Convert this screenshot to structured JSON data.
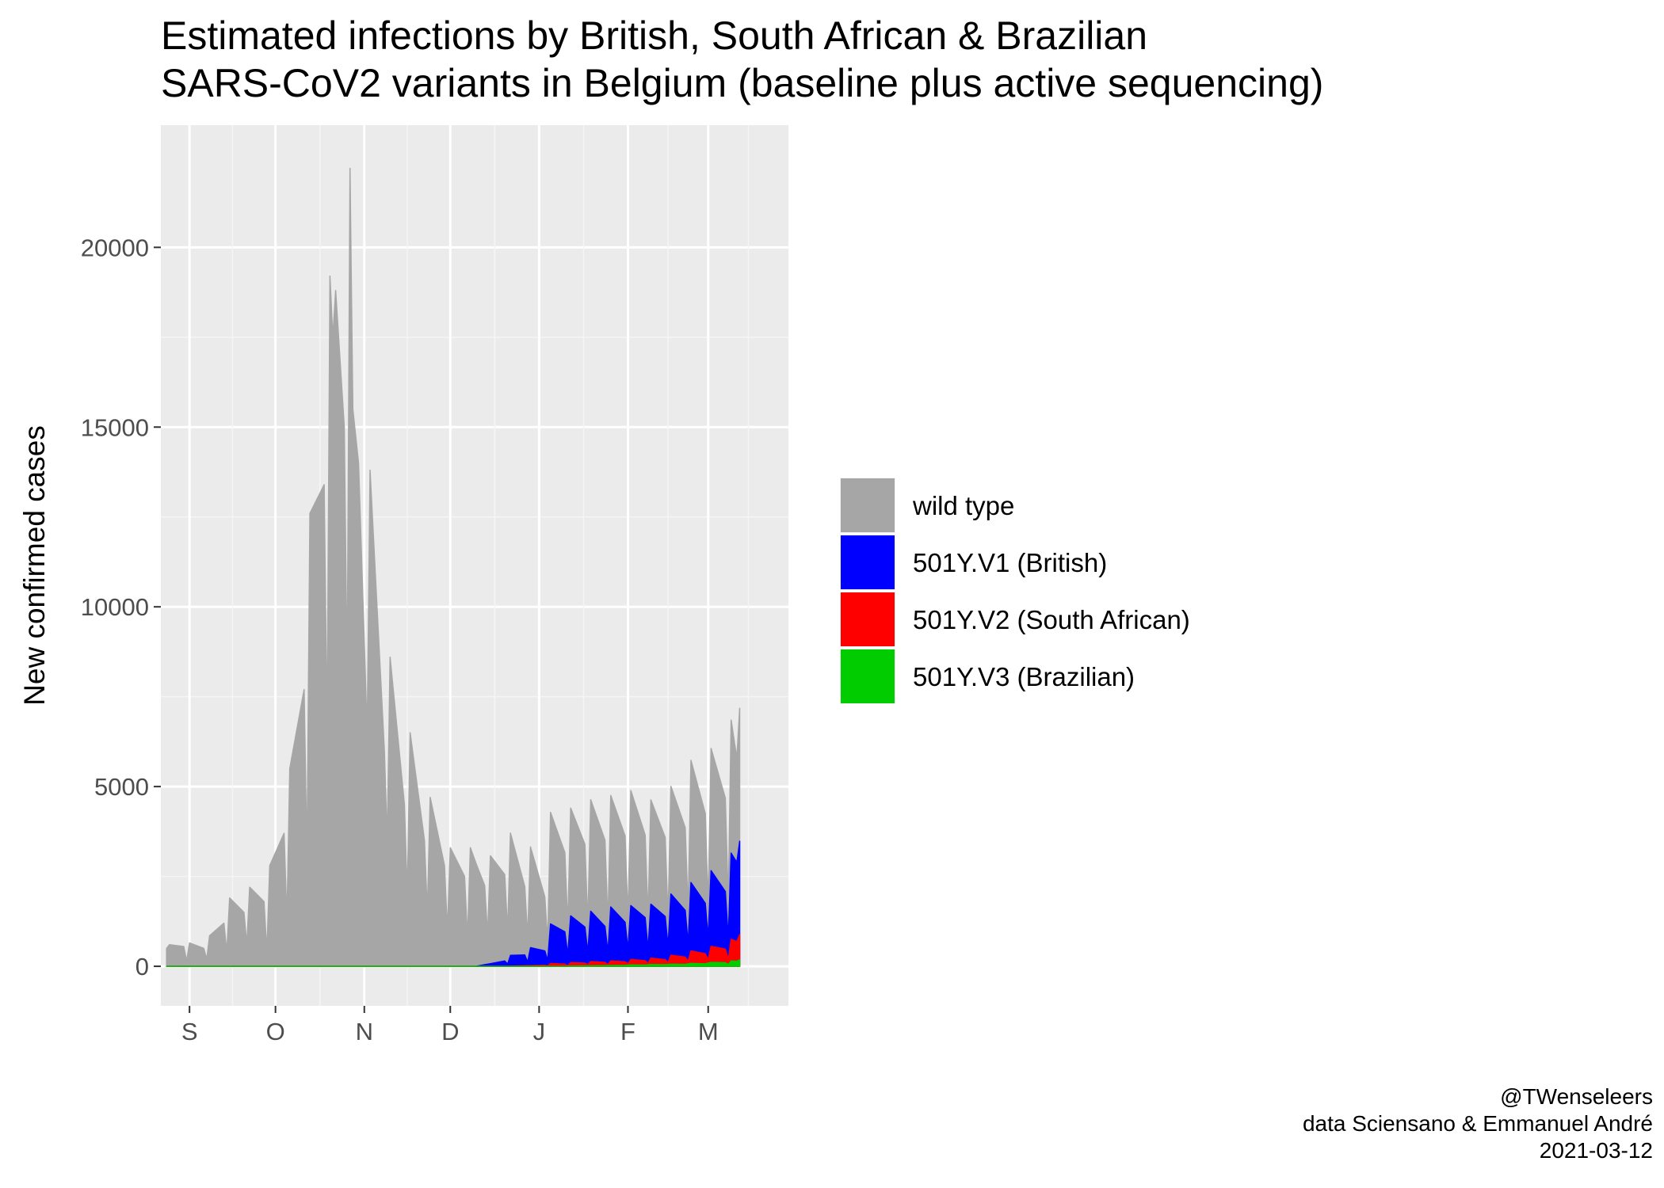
{
  "chart_data": {
    "type": "area",
    "stacked": true,
    "title": "Estimated infections by British, South African & Brazilian SARS-CoV2 variants in Belgium (baseline plus active sequencing)",
    "title_lines": [
      "Estimated infections by British, South African & Brazilian",
      "SARS-CoV2 variants in Belgium (baseline plus active sequencing)"
    ],
    "xlabel": "",
    "ylabel": "New confirmed cases",
    "x_range": [
      "2020-08-22",
      "2021-03-29"
    ],
    "ylim": [
      -1100,
      23400
    ],
    "yticks": [
      0,
      5000,
      10000,
      15000,
      20000
    ],
    "xticks": [
      {
        "label": "S",
        "date": "2020-09-01"
      },
      {
        "label": "O",
        "date": "2020-10-01"
      },
      {
        "label": "N",
        "date": "2020-11-01"
      },
      {
        "label": "D",
        "date": "2020-12-01"
      },
      {
        "label": "J",
        "date": "2021-01-01"
      },
      {
        "label": "F",
        "date": "2021-02-01"
      },
      {
        "label": "M",
        "date": "2021-03-01"
      }
    ],
    "grid": true,
    "legend_position": "right",
    "series": [
      {
        "name": "wild type",
        "color": "#a6a6a6",
        "points": [
          [
            "2020-08-24",
            500
          ],
          [
            "2020-08-25",
            600
          ],
          [
            "2020-08-30",
            550
          ],
          [
            "2020-08-31",
            150
          ],
          [
            "2020-09-01",
            650
          ],
          [
            "2020-09-06",
            500
          ],
          [
            "2020-09-07",
            200
          ],
          [
            "2020-09-08",
            850
          ],
          [
            "2020-09-13",
            1200
          ],
          [
            "2020-09-14",
            400
          ],
          [
            "2020-09-15",
            1900
          ],
          [
            "2020-09-20",
            1500
          ],
          [
            "2020-09-21",
            600
          ],
          [
            "2020-09-22",
            2200
          ],
          [
            "2020-09-27",
            1800
          ],
          [
            "2020-09-28",
            400
          ],
          [
            "2020-09-29",
            2800
          ],
          [
            "2020-10-04",
            3700
          ],
          [
            "2020-10-05",
            1300
          ],
          [
            "2020-10-06",
            5500
          ],
          [
            "2020-10-11",
            7700
          ],
          [
            "2020-10-12",
            3000
          ],
          [
            "2020-10-13",
            12600
          ],
          [
            "2020-10-18",
            13400
          ],
          [
            "2020-10-19",
            6500
          ],
          [
            "2020-10-20",
            19200
          ],
          [
            "2020-10-21",
            17500
          ],
          [
            "2020-10-22",
            18800
          ],
          [
            "2020-10-25",
            15000
          ],
          [
            "2020-10-26",
            8000
          ],
          [
            "2020-10-27",
            22200
          ],
          [
            "2020-10-28",
            15500
          ],
          [
            "2020-10-30",
            14000
          ],
          [
            "2020-11-02",
            6500
          ],
          [
            "2020-11-03",
            13800
          ],
          [
            "2020-11-08",
            6000
          ],
          [
            "2020-11-09",
            3500
          ],
          [
            "2020-11-10",
            8600
          ],
          [
            "2020-11-15",
            4500
          ],
          [
            "2020-11-16",
            2000
          ],
          [
            "2020-11-17",
            6500
          ],
          [
            "2020-11-22",
            3500
          ],
          [
            "2020-11-23",
            1500
          ],
          [
            "2020-11-24",
            4700
          ],
          [
            "2020-11-29",
            2800
          ],
          [
            "2020-11-30",
            1000
          ],
          [
            "2020-12-01",
            3300
          ],
          [
            "2020-12-06",
            2500
          ],
          [
            "2020-12-07",
            800
          ],
          [
            "2020-12-08",
            3300
          ],
          [
            "2020-12-13",
            2200
          ],
          [
            "2020-12-14",
            800
          ],
          [
            "2020-12-15",
            3000
          ],
          [
            "2020-12-20",
            2400
          ],
          [
            "2020-12-21",
            900
          ],
          [
            "2020-12-22",
            3400
          ],
          [
            "2020-12-27",
            1900
          ],
          [
            "2020-12-28",
            700
          ],
          [
            "2020-12-29",
            2800
          ],
          [
            "2021-01-03",
            1500
          ],
          [
            "2021-01-04",
            500
          ],
          [
            "2021-01-05",
            3100
          ],
          [
            "2021-01-10",
            2200
          ],
          [
            "2021-01-11",
            800
          ],
          [
            "2021-01-12",
            3000
          ],
          [
            "2021-01-17",
            2300
          ],
          [
            "2021-01-18",
            800
          ],
          [
            "2021-01-19",
            3100
          ],
          [
            "2021-01-24",
            2400
          ],
          [
            "2021-01-25",
            800
          ],
          [
            "2021-01-26",
            3100
          ],
          [
            "2021-01-31",
            2400
          ],
          [
            "2021-02-01",
            900
          ],
          [
            "2021-02-02",
            3200
          ],
          [
            "2021-02-07",
            2300
          ],
          [
            "2021-02-08",
            900
          ],
          [
            "2021-02-09",
            2900
          ],
          [
            "2021-02-14",
            2200
          ],
          [
            "2021-02-15",
            800
          ],
          [
            "2021-02-16",
            3000
          ],
          [
            "2021-02-21",
            2300
          ],
          [
            "2021-02-22",
            900
          ],
          [
            "2021-02-23",
            3400
          ],
          [
            "2021-02-28",
            2500
          ],
          [
            "2021-03-01",
            900
          ],
          [
            "2021-03-02",
            3400
          ],
          [
            "2021-03-07",
            2600
          ],
          [
            "2021-03-08",
            1000
          ],
          [
            "2021-03-09",
            3700
          ],
          [
            "2021-03-11",
            2900
          ],
          [
            "2021-03-12",
            3700
          ]
        ]
      },
      {
        "name": "501Y.V1 (British)",
        "color": "#0000ff",
        "points": [
          [
            "2020-08-24",
            0
          ],
          [
            "2020-12-10",
            0
          ],
          [
            "2020-12-14",
            60
          ],
          [
            "2020-12-20",
            150
          ],
          [
            "2020-12-21",
            60
          ],
          [
            "2020-12-22",
            300
          ],
          [
            "2020-12-27",
            300
          ],
          [
            "2020-12-28",
            100
          ],
          [
            "2020-12-29",
            500
          ],
          [
            "2021-01-03",
            400
          ],
          [
            "2021-01-04",
            150
          ],
          [
            "2021-01-05",
            1100
          ],
          [
            "2021-01-10",
            900
          ],
          [
            "2021-01-11",
            300
          ],
          [
            "2021-01-12",
            1300
          ],
          [
            "2021-01-17",
            1000
          ],
          [
            "2021-01-18",
            350
          ],
          [
            "2021-01-19",
            1400
          ],
          [
            "2021-01-24",
            1000
          ],
          [
            "2021-01-25",
            350
          ],
          [
            "2021-01-26",
            1500
          ],
          [
            "2021-01-31",
            1100
          ],
          [
            "2021-02-01",
            400
          ],
          [
            "2021-02-02",
            1500
          ],
          [
            "2021-02-07",
            1200
          ],
          [
            "2021-02-08",
            400
          ],
          [
            "2021-02-09",
            1500
          ],
          [
            "2021-02-14",
            1200
          ],
          [
            "2021-02-15",
            450
          ],
          [
            "2021-02-16",
            1700
          ],
          [
            "2021-02-21",
            1300
          ],
          [
            "2021-02-22",
            500
          ],
          [
            "2021-02-23",
            1900
          ],
          [
            "2021-02-28",
            1400
          ],
          [
            "2021-03-01",
            600
          ],
          [
            "2021-03-02",
            2100
          ],
          [
            "2021-03-07",
            1600
          ],
          [
            "2021-03-08",
            600
          ],
          [
            "2021-03-09",
            2400
          ],
          [
            "2021-03-11",
            2200
          ],
          [
            "2021-03-12",
            2600
          ]
        ]
      },
      {
        "name": "501Y.V2 (South African)",
        "color": "#ff0000",
        "points": [
          [
            "2020-08-24",
            0
          ],
          [
            "2020-12-20",
            0
          ],
          [
            "2021-01-03",
            30
          ],
          [
            "2021-01-04",
            10
          ],
          [
            "2021-01-05",
            80
          ],
          [
            "2021-01-10",
            60
          ],
          [
            "2021-01-11",
            20
          ],
          [
            "2021-01-12",
            100
          ],
          [
            "2021-01-17",
            80
          ],
          [
            "2021-01-18",
            30
          ],
          [
            "2021-01-19",
            120
          ],
          [
            "2021-01-24",
            90
          ],
          [
            "2021-01-25",
            30
          ],
          [
            "2021-01-26",
            130
          ],
          [
            "2021-01-31",
            100
          ],
          [
            "2021-02-01",
            40
          ],
          [
            "2021-02-02",
            150
          ],
          [
            "2021-02-07",
            120
          ],
          [
            "2021-02-08",
            40
          ],
          [
            "2021-02-09",
            180
          ],
          [
            "2021-02-14",
            140
          ],
          [
            "2021-02-15",
            50
          ],
          [
            "2021-02-16",
            250
          ],
          [
            "2021-02-21",
            200
          ],
          [
            "2021-02-22",
            70
          ],
          [
            "2021-02-23",
            350
          ],
          [
            "2021-02-28",
            280
          ],
          [
            "2021-03-01",
            100
          ],
          [
            "2021-03-02",
            450
          ],
          [
            "2021-03-07",
            380
          ],
          [
            "2021-03-08",
            140
          ],
          [
            "2021-03-09",
            600
          ],
          [
            "2021-03-11",
            550
          ],
          [
            "2021-03-12",
            700
          ]
        ]
      },
      {
        "name": "501Y.V3 (Brazilian)",
        "color": "#00cc00",
        "points": [
          [
            "2020-08-24",
            0
          ],
          [
            "2021-01-10",
            0
          ],
          [
            "2021-01-17",
            10
          ],
          [
            "2021-01-24",
            20
          ],
          [
            "2021-01-31",
            25
          ],
          [
            "2021-02-02",
            40
          ],
          [
            "2021-02-07",
            35
          ],
          [
            "2021-02-09",
            50
          ],
          [
            "2021-02-14",
            45
          ],
          [
            "2021-02-16",
            60
          ],
          [
            "2021-02-21",
            55
          ],
          [
            "2021-02-23",
            80
          ],
          [
            "2021-02-28",
            70
          ],
          [
            "2021-03-02",
            110
          ],
          [
            "2021-03-07",
            100
          ],
          [
            "2021-03-08",
            50
          ],
          [
            "2021-03-09",
            150
          ],
          [
            "2021-03-11",
            140
          ],
          [
            "2021-03-12",
            180
          ]
        ]
      }
    ],
    "caption": [
      "@TWenseleers",
      "data Sciensano & Emmanuel André",
      "2021-03-12"
    ]
  }
}
